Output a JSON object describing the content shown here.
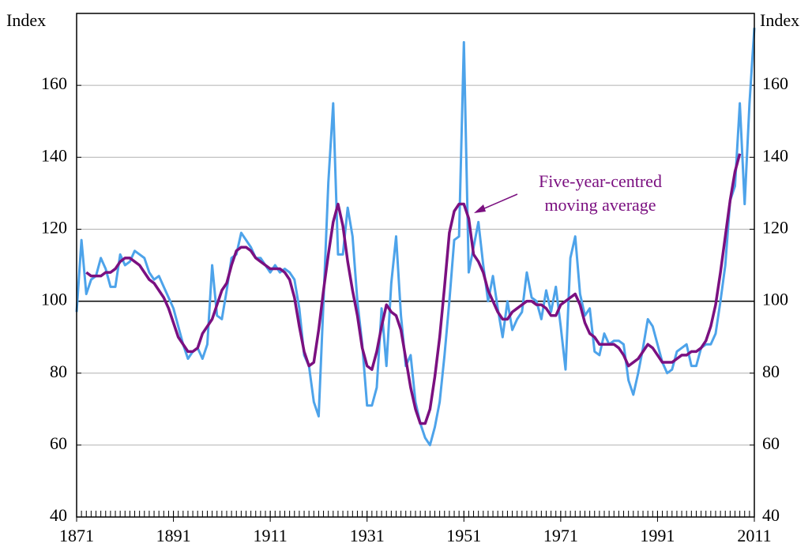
{
  "chart_data": {
    "type": "line",
    "ylabel": "Index",
    "y2label": "Index",
    "x": [
      1871,
      1872,
      1873,
      1874,
      1875,
      1876,
      1877,
      1878,
      1879,
      1880,
      1881,
      1882,
      1883,
      1884,
      1885,
      1886,
      1887,
      1888,
      1889,
      1890,
      1891,
      1892,
      1893,
      1894,
      1895,
      1896,
      1897,
      1898,
      1899,
      1900,
      1901,
      1902,
      1903,
      1904,
      1905,
      1906,
      1907,
      1908,
      1909,
      1910,
      1911,
      1912,
      1913,
      1914,
      1915,
      1916,
      1917,
      1918,
      1919,
      1920,
      1921,
      1922,
      1923,
      1924,
      1925,
      1926,
      1927,
      1928,
      1929,
      1930,
      1931,
      1932,
      1933,
      1934,
      1935,
      1936,
      1937,
      1938,
      1939,
      1940,
      1941,
      1942,
      1943,
      1944,
      1945,
      1946,
      1947,
      1948,
      1949,
      1950,
      1951,
      1952,
      1953,
      1954,
      1955,
      1956,
      1957,
      1958,
      1959,
      1960,
      1961,
      1962,
      1963,
      1964,
      1965,
      1966,
      1967,
      1968,
      1969,
      1970,
      1971,
      1972,
      1973,
      1974,
      1975,
      1976,
      1977,
      1978,
      1979,
      1980,
      1981,
      1982,
      1983,
      1984,
      1985,
      1986,
      1987,
      1988,
      1989,
      1990,
      1991,
      1992,
      1993,
      1994,
      1995,
      1996,
      1997,
      1998,
      1999,
      2000,
      2001,
      2002,
      2003,
      2004,
      2005,
      2006,
      2007,
      2008,
      2009,
      2010,
      2011
    ],
    "series": [
      {
        "color": "#4da3ea",
        "values": [
          97,
          117,
          102,
          106,
          107,
          112,
          109,
          104,
          104,
          113,
          110,
          111,
          114,
          113,
          112,
          108,
          106,
          107,
          104,
          101,
          98,
          93,
          88,
          84,
          86,
          87,
          84,
          88,
          110,
          96,
          95,
          103,
          112,
          113,
          119,
          117,
          115,
          112,
          112,
          110,
          108,
          110,
          108,
          109,
          108,
          106,
          98,
          85,
          82,
          72,
          68,
          100,
          133,
          155,
          113,
          113,
          126,
          118,
          100,
          88,
          71,
          71,
          76,
          98,
          82,
          105,
          118,
          96,
          82,
          85,
          72,
          66,
          62,
          60,
          65,
          72,
          85,
          100,
          117,
          118,
          172,
          108,
          115,
          122,
          110,
          100,
          107,
          98,
          90,
          100,
          92,
          95,
          97,
          108,
          101,
          100,
          95,
          103,
          97,
          104,
          93,
          81,
          112,
          118,
          102,
          96,
          98,
          86,
          85,
          91,
          88,
          89,
          89,
          88,
          78,
          74,
          80,
          87,
          95,
          93,
          88,
          83,
          80,
          81,
          86,
          87,
          88,
          82,
          82,
          87,
          88,
          88,
          91,
          100,
          110,
          128,
          132,
          155,
          127,
          155,
          176
        ]
      },
      {
        "color": "#7b1080",
        "values": [
          null,
          null,
          108,
          107,
          107,
          107,
          108,
          108,
          109,
          111,
          112,
          112,
          111,
          110,
          108,
          106,
          105,
          103,
          101,
          98,
          94,
          90,
          88,
          86,
          86,
          87,
          91,
          93,
          95,
          99,
          103,
          105,
          110,
          114,
          115,
          115,
          114,
          112,
          111,
          110,
          109,
          109,
          109,
          108,
          106,
          101,
          93,
          86,
          82,
          83,
          92,
          103,
          113,
          122,
          127,
          121,
          111,
          103,
          96,
          87,
          82,
          81,
          86,
          93,
          99,
          97,
          96,
          92,
          84,
          76,
          70,
          66,
          66,
          70,
          79,
          90,
          104,
          119,
          125,
          127,
          127,
          123,
          113,
          111,
          108,
          103,
          100,
          97,
          95,
          95,
          97,
          98,
          99,
          100,
          100,
          99,
          99,
          98,
          96,
          96,
          99,
          100,
          101,
          102,
          99,
          94,
          91,
          90,
          88,
          88,
          88,
          88,
          87,
          85,
          82,
          83,
          84,
          86,
          88,
          87,
          85,
          83,
          83,
          83,
          84,
          85,
          85,
          86,
          86,
          87,
          89,
          93,
          99,
          108,
          118,
          128,
          136,
          141,
          null,
          null,
          null
        ]
      }
    ],
    "annotation": {
      "lines": [
        "Five-year-centred",
        "moving average"
      ],
      "color": "#7b1080"
    },
    "hline": 100,
    "xlim": [
      1871,
      2011
    ],
    "xticks": [
      1871,
      1891,
      1911,
      1931,
      1951,
      1971,
      1991,
      2011
    ],
    "ylim": [
      40,
      180
    ],
    "yticks": [
      40,
      60,
      80,
      100,
      120,
      140,
      160
    ],
    "y2lim": [
      40,
      180
    ],
    "y2ticks": [
      40,
      60,
      80,
      100,
      120,
      140,
      160
    ],
    "grid": true
  }
}
